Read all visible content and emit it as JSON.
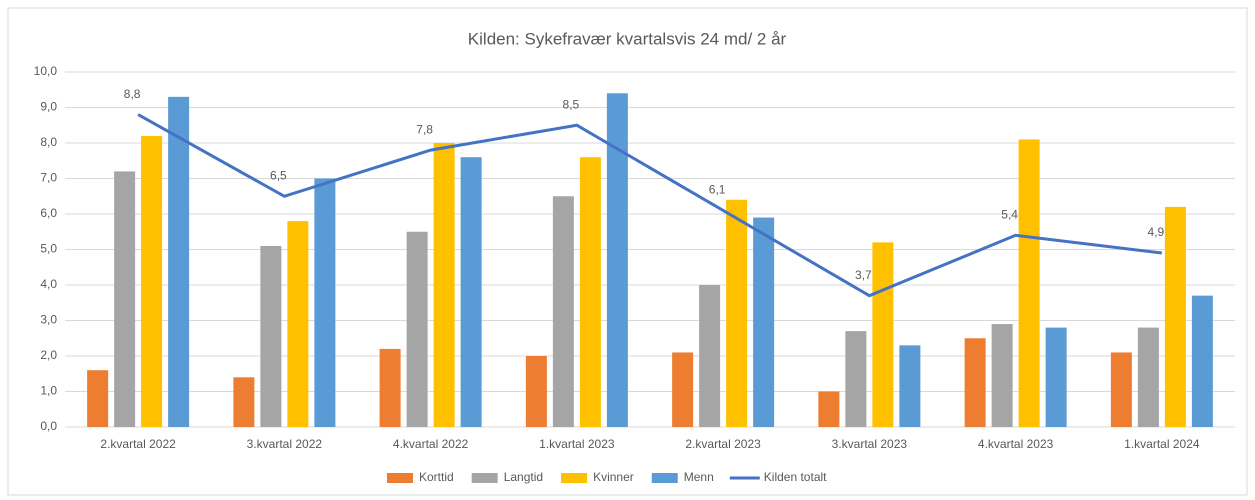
{
  "chart_data": {
    "type": "bar",
    "title": "Kilden: Sykefravær kvartalsvis 24 md/ 2 år",
    "categories": [
      "2.kvartal 2022",
      "3.kvartal 2022",
      "4.kvartal 2022",
      "1.kvartal 2023",
      "2.kvartal 2023",
      "3.kvartal 2023",
      "4.kvartal 2023",
      "1.kvartal 2024"
    ],
    "series": [
      {
        "name": "Korttid",
        "color": "#ED7D31",
        "values": [
          1.6,
          1.4,
          2.2,
          2.0,
          2.1,
          1.0,
          2.5,
          2.1
        ]
      },
      {
        "name": "Langtid",
        "color": "#A5A5A5",
        "values": [
          7.2,
          5.1,
          5.5,
          6.5,
          4.0,
          2.7,
          2.9,
          2.8
        ]
      },
      {
        "name": "Kvinner",
        "color": "#FFC000",
        "values": [
          8.2,
          5.8,
          8.0,
          7.6,
          6.4,
          5.2,
          8.1,
          6.2
        ]
      },
      {
        "name": "Menn",
        "color": "#5B9BD5",
        "values": [
          9.3,
          7.0,
          7.6,
          9.4,
          5.9,
          2.3,
          2.8,
          3.7
        ]
      },
      {
        "name": "Kilden totalt",
        "color": "#4472C4",
        "type": "line",
        "values": [
          8.8,
          6.5,
          7.8,
          8.5,
          6.1,
          3.7,
          5.4,
          4.9
        ],
        "value_labels": [
          "8,8",
          "6,5",
          "7,8",
          "8,5",
          "6,1",
          "3,7",
          "5,4",
          "4,9"
        ]
      }
    ],
    "ylim": [
      0,
      10
    ],
    "yticks": [
      {
        "value": 0,
        "label": "0,0"
      },
      {
        "value": 1,
        "label": "1,0"
      },
      {
        "value": 2,
        "label": "2,0"
      },
      {
        "value": 3,
        "label": "3,0"
      },
      {
        "value": 4,
        "label": "4,0"
      },
      {
        "value": 5,
        "label": "5,0"
      },
      {
        "value": 6,
        "label": "6,0"
      },
      {
        "value": 7,
        "label": "7,0"
      },
      {
        "value": 8,
        "label": "8,0"
      },
      {
        "value": 9,
        "label": "9,0"
      },
      {
        "value": 10,
        "label": "10,0"
      }
    ],
    "grid": true,
    "legend": "bottom"
  }
}
